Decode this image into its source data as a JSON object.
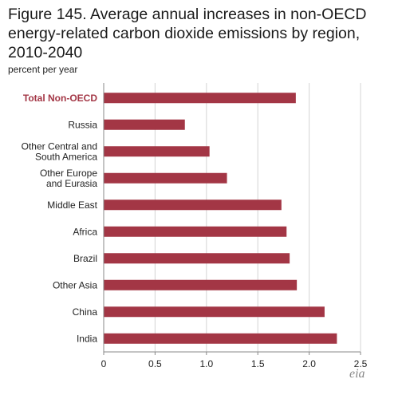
{
  "figure": {
    "title": "Figure 145. Average annual increases in non-OECD energy-related carbon dioxide emissions by region, 2010-2040",
    "subtitle": "percent per year",
    "logo": "eia"
  },
  "colors": {
    "bar": "#a33645",
    "highlight_label": "#a33645",
    "grid": "#d4d4d4",
    "axis": "#888888"
  },
  "chart_data": {
    "type": "bar",
    "orientation": "horizontal",
    "title": "Figure 145. Average annual increases in non-OECD energy-related carbon dioxide emissions by region, 2010-2040",
    "ylabel": "percent per year",
    "xlabel": "",
    "categories": [
      "Total Non-OECD",
      "Russia",
      "Other Central and South America",
      "Other Europe and Eurasia",
      "Middle East",
      "Africa",
      "Brazil",
      "Other Asia",
      "China",
      "India"
    ],
    "category_lines": [
      [
        "Total Non-OECD"
      ],
      [
        "Russia"
      ],
      [
        "Other Central and",
        "South America"
      ],
      [
        "Other Europe",
        "and Eurasia"
      ],
      [
        "Middle East"
      ],
      [
        "Africa"
      ],
      [
        "Brazil"
      ],
      [
        "Other Asia"
      ],
      [
        "China"
      ],
      [
        "India"
      ]
    ],
    "highlight_index": 0,
    "values": [
      1.87,
      0.79,
      1.03,
      1.2,
      1.73,
      1.78,
      1.81,
      1.88,
      2.15,
      2.27
    ],
    "xlim": [
      0,
      2.5
    ],
    "xticks": [
      0,
      0.5,
      1.0,
      1.5,
      2.0,
      2.5
    ],
    "xtick_labels": [
      "0",
      "0.5",
      "1.0",
      "1.5",
      "2.0",
      "2.5"
    ],
    "grid": true
  }
}
